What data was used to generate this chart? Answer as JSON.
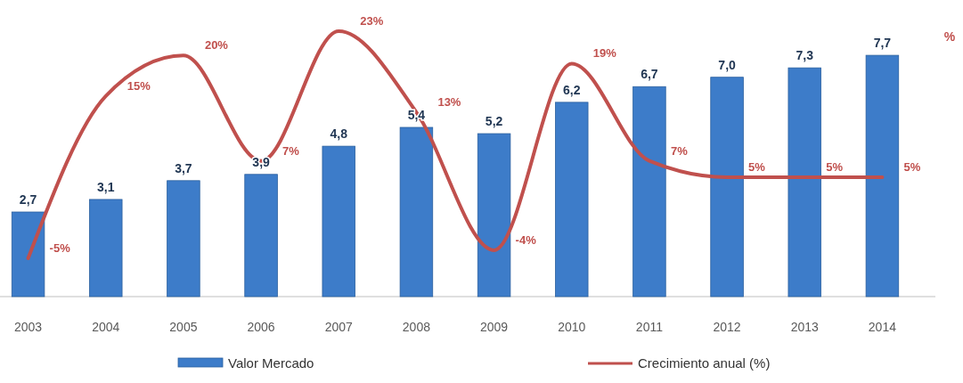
{
  "chart_data": {
    "type": "bar",
    "categories": [
      "2003",
      "2004",
      "2005",
      "2006",
      "2007",
      "2008",
      "2009",
      "2010",
      "2011",
      "2012",
      "2013",
      "2014"
    ],
    "y2label": "%",
    "legend": "bottom",
    "series": [
      {
        "name": "Valor Mercado",
        "color": "#3d7cc9",
        "values": [
          2.7,
          3.1,
          3.7,
          3.9,
          4.8,
          5.4,
          5.2,
          6.2,
          6.7,
          7.0,
          7.3,
          7.7
        ],
        "value_labels": [
          "2,7",
          "3,1",
          "3,7",
          "3,9",
          "4,8",
          "5,4",
          "5,2",
          "6,2",
          "6,7",
          "7,0",
          "7,3",
          "7,7"
        ]
      },
      {
        "name": "Crecimiento anual (%)",
        "type": "line",
        "axis": "y2",
        "color": "#c0504d",
        "values": [
          -5,
          15,
          20,
          7,
          23,
          13,
          -4,
          19,
          7,
          5,
          5,
          5
        ],
        "value_labels": [
          "-5%",
          "15%",
          "20%",
          "7%",
          "23%",
          "13%",
          "-4%",
          "19%",
          "7%",
          "5%",
          "5%",
          "5%"
        ]
      }
    ]
  }
}
